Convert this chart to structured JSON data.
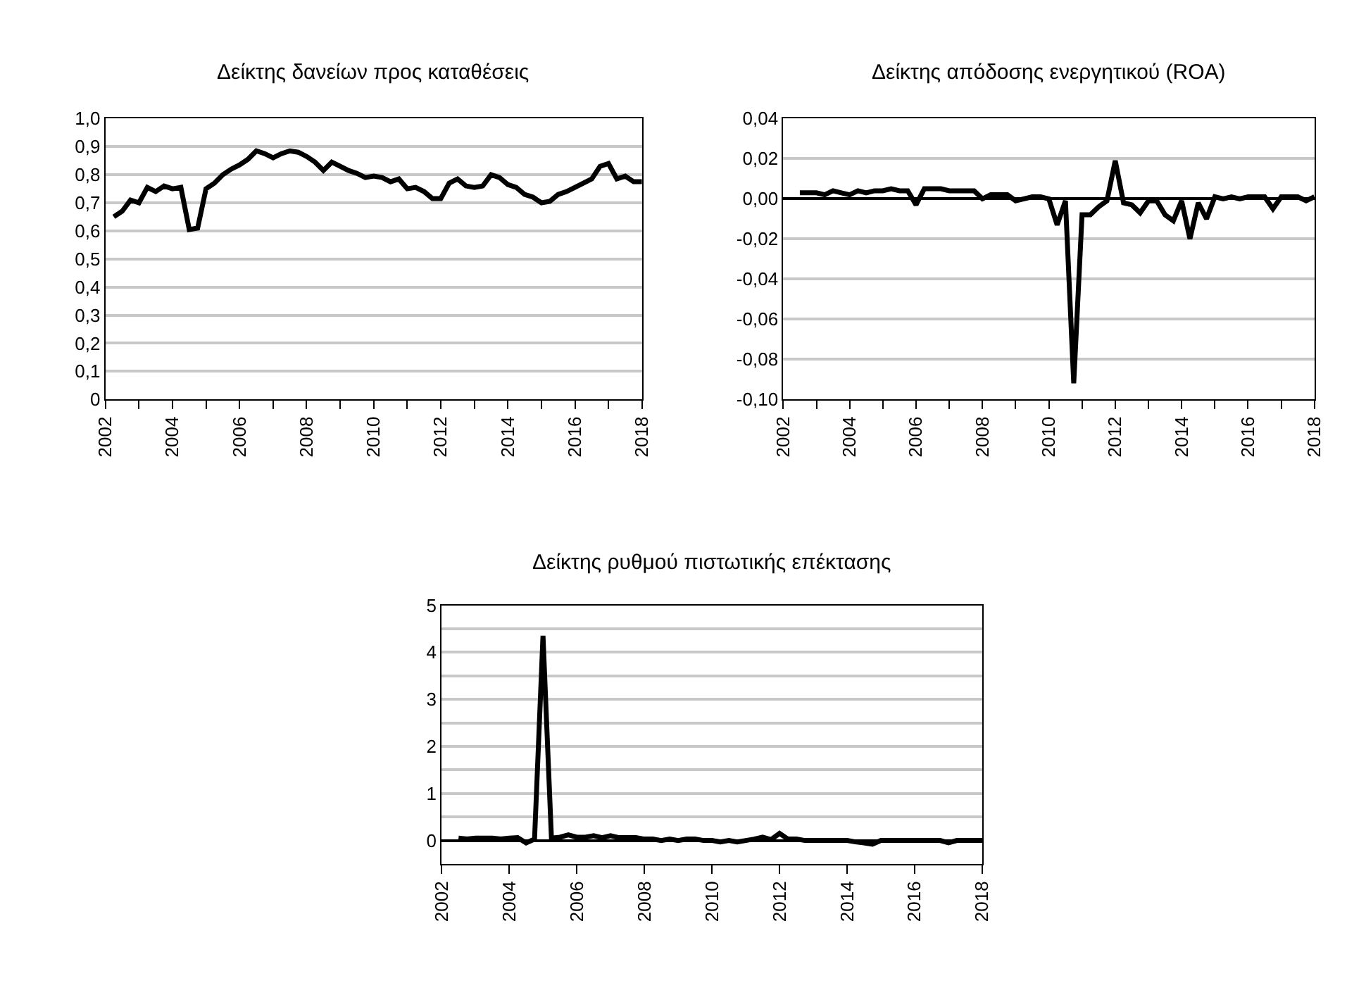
{
  "chart_data": [
    {
      "type": "line",
      "title": "Δείκτης δανείων προς καταθέσεις",
      "grid": "y",
      "line_style": "solid",
      "x": [
        2002.25,
        2002.5,
        2002.75,
        2003,
        2003.25,
        2003.5,
        2003.75,
        2004,
        2004.25,
        2004.5,
        2004.75,
        2005,
        2005.25,
        2005.5,
        2005.75,
        2006,
        2006.25,
        2006.5,
        2006.75,
        2007,
        2007.25,
        2007.5,
        2007.75,
        2008,
        2008.25,
        2008.5,
        2008.75,
        2009,
        2009.25,
        2009.5,
        2009.75,
        2010,
        2010.25,
        2010.5,
        2010.75,
        2011,
        2011.25,
        2011.5,
        2011.75,
        2012,
        2012.25,
        2012.5,
        2012.75,
        2013,
        2013.25,
        2013.5,
        2013.75,
        2014,
        2014.25,
        2014.5,
        2014.75,
        2015,
        2015.25,
        2015.5,
        2015.75,
        2016,
        2016.25,
        2016.5,
        2016.75,
        2017,
        2017.25,
        2017.5,
        2017.75,
        2018
      ],
      "series": [
        {
          "color": "#000000",
          "values": [
            0.65,
            0.67,
            0.71,
            0.7,
            0.755,
            0.74,
            0.76,
            0.75,
            0.755,
            0.605,
            0.61,
            0.75,
            0.77,
            0.8,
            0.82,
            0.835,
            0.855,
            0.885,
            0.875,
            0.86,
            0.875,
            0.885,
            0.88,
            0.865,
            0.845,
            0.815,
            0.845,
            0.83,
            0.815,
            0.805,
            0.79,
            0.795,
            0.79,
            0.775,
            0.785,
            0.75,
            0.755,
            0.74,
            0.715,
            0.715,
            0.77,
            0.785,
            0.76,
            0.755,
            0.76,
            0.8,
            0.79,
            0.765,
            0.755,
            0.73,
            0.72,
            0.7,
            0.705,
            0.73,
            0.74,
            0.755,
            0.77,
            0.785,
            0.83,
            0.84,
            0.785,
            0.795,
            0.775,
            0.775
          ]
        }
      ],
      "xlim": [
        2002,
        2018
      ],
      "xticks": [
        2002,
        {
          "value": 2003,
          "label": null
        },
        2004,
        {
          "value": 2005,
          "label": null
        },
        2006,
        {
          "value": 2007,
          "label": null
        },
        2008,
        {
          "value": 2009,
          "label": null
        },
        2010,
        {
          "value": 2011,
          "label": null
        },
        2012,
        {
          "value": 2013,
          "label": null
        },
        2014,
        {
          "value": 2015,
          "label": null
        },
        2016,
        {
          "value": 2017,
          "label": null
        },
        2018
      ],
      "ylim": [
        0,
        1
      ],
      "yticks": [
        0,
        {
          "value": 0.1,
          "label": "0,1"
        },
        {
          "value": 0.2,
          "label": "0,2"
        },
        {
          "value": 0.3,
          "label": "0,3"
        },
        {
          "value": 0.4,
          "label": "0,4"
        },
        {
          "value": 0.5,
          "label": "0,5"
        },
        {
          "value": 0.6,
          "label": "0,6"
        },
        {
          "value": 0.7,
          "label": "0,7"
        },
        {
          "value": 0.8,
          "label": "0,8"
        },
        {
          "value": 0.9,
          "label": "0,9"
        },
        {
          "value": 1.0,
          "label": "1,0"
        }
      ]
    },
    {
      "type": "line",
      "title": "Δείκτης απόδοσης ενεργητικού (ROA)",
      "grid": "y",
      "line_style": "solid",
      "x": [
        2002.5,
        2002.75,
        2003,
        2003.25,
        2003.5,
        2003.75,
        2004,
        2004.25,
        2004.5,
        2004.75,
        2005,
        2005.25,
        2005.5,
        2005.75,
        2006,
        2006.25,
        2006.5,
        2006.75,
        2007,
        2007.25,
        2007.5,
        2007.75,
        2008,
        2008.25,
        2008.5,
        2008.75,
        2009,
        2009.25,
        2009.5,
        2009.75,
        2010,
        2010.25,
        2010.5,
        2010.75,
        2011,
        2011.25,
        2011.5,
        2011.75,
        2012,
        2012.25,
        2012.5,
        2012.75,
        2013,
        2013.25,
        2013.5,
        2013.75,
        2014,
        2014.25,
        2014.5,
        2014.75,
        2015,
        2015.25,
        2015.5,
        2015.75,
        2016,
        2016.25,
        2016.5,
        2016.75,
        2017,
        2017.25,
        2017.5,
        2017.75,
        2018
      ],
      "series": [
        {
          "color": "#000000",
          "values": [
            0.003,
            0.003,
            0.003,
            0.002,
            0.004,
            0.003,
            0.002,
            0.004,
            0.003,
            0.004,
            0.004,
            0.005,
            0.004,
            0.004,
            -0.003,
            0.005,
            0.005,
            0.005,
            0.004,
            0.004,
            0.004,
            0.004,
            0.0,
            0.002,
            0.002,
            0.002,
            -0.001,
            0.0,
            0.001,
            0.001,
            0.0,
            -0.013,
            -0.001,
            -0.092,
            -0.008,
            -0.008,
            -0.004,
            -0.001,
            0.019,
            -0.002,
            -0.003,
            -0.007,
            -0.001,
            -0.001,
            -0.008,
            -0.011,
            -0.001,
            -0.02,
            -0.002,
            -0.01,
            0.001,
            0.0,
            0.001,
            0.0,
            0.001,
            0.001,
            0.001,
            -0.005,
            0.001,
            0.001,
            0.001,
            -0.001,
            0.001
          ]
        }
      ],
      "xlim": [
        2002,
        2018
      ],
      "xticks": [
        2002,
        {
          "value": 2003,
          "label": null
        },
        2004,
        {
          "value": 2005,
          "label": null
        },
        2006,
        {
          "value": 2007,
          "label": null
        },
        2008,
        {
          "value": 2009,
          "label": null
        },
        2010,
        {
          "value": 2011,
          "label": null
        },
        2012,
        {
          "value": 2013,
          "label": null
        },
        2014,
        {
          "value": 2015,
          "label": null
        },
        2016,
        {
          "value": 2017,
          "label": null
        },
        2018
      ],
      "ylim": [
        -0.1,
        0.04
      ],
      "yticks": [
        {
          "value": -0.1,
          "label": "-0,10"
        },
        {
          "value": -0.08,
          "label": "-0,08"
        },
        {
          "value": -0.06,
          "label": "-0,06"
        },
        {
          "value": -0.04,
          "label": "-0,04"
        },
        {
          "value": -0.02,
          "label": "-0,02"
        },
        {
          "value": 0,
          "label": "0,00"
        },
        {
          "value": 0.02,
          "label": "0,02"
        },
        {
          "value": 0.04,
          "label": "0,04"
        }
      ]
    },
    {
      "type": "line",
      "title": "Δείκτης ρυθμού πιστωτικής επέκτασης",
      "grid": "y",
      "line_style": "solid",
      "x": [
        2002.5,
        2002.75,
        2003,
        2003.25,
        2003.5,
        2003.75,
        2004,
        2004.25,
        2004.5,
        2004.75,
        2005,
        2005.25,
        2005.5,
        2005.75,
        2006,
        2006.25,
        2006.5,
        2006.75,
        2007,
        2007.25,
        2007.5,
        2007.75,
        2008,
        2008.25,
        2008.5,
        2008.75,
        2009,
        2009.25,
        2009.5,
        2009.75,
        2010,
        2010.25,
        2010.5,
        2010.75,
        2011,
        2011.25,
        2011.5,
        2011.75,
        2012,
        2012.25,
        2012.5,
        2012.75,
        2013,
        2013.25,
        2013.5,
        2013.75,
        2014,
        2014.25,
        2014.5,
        2014.75,
        2015,
        2015.25,
        2015.5,
        2015.75,
        2016,
        2016.25,
        2016.5,
        2016.75,
        2017,
        2017.25,
        2017.5,
        2017.75,
        2018
      ],
      "series": [
        {
          "color": "#000000",
          "values": [
            0.05,
            0.03,
            0.05,
            0.05,
            0.05,
            0.03,
            0.05,
            0.06,
            -0.05,
            0.03,
            4.35,
            0.05,
            0.07,
            0.12,
            0.07,
            0.07,
            0.1,
            0.06,
            0.1,
            0.06,
            0.06,
            0.06,
            0.03,
            0.03,
            0,
            0.03,
            0,
            0.03,
            0.03,
            0,
            0,
            -0.03,
            0,
            -0.03,
            0,
            0.03,
            0.07,
            0.02,
            0.15,
            0.03,
            0.03,
            0,
            0,
            0,
            0,
            0,
            0,
            -0.03,
            -0.05,
            -0.08,
            0,
            0,
            0,
            0,
            0,
            0,
            0,
            0,
            -0.05,
            0,
            0,
            0,
            0
          ]
        }
      ],
      "xlim": [
        2002,
        2018
      ],
      "xticks": [
        2002,
        2004,
        2006,
        2008,
        2010,
        2012,
        2014,
        2016,
        2018
      ],
      "ylim": [
        -0.5,
        5
      ],
      "yticks": [
        0,
        {
          "value": 0.5,
          "label": null
        },
        1,
        {
          "value": 1.5,
          "label": null
        },
        2,
        {
          "value": 2.5,
          "label": null
        },
        3,
        {
          "value": 3.5,
          "label": null
        },
        4,
        {
          "value": 4.5,
          "label": null
        },
        5
      ]
    }
  ]
}
